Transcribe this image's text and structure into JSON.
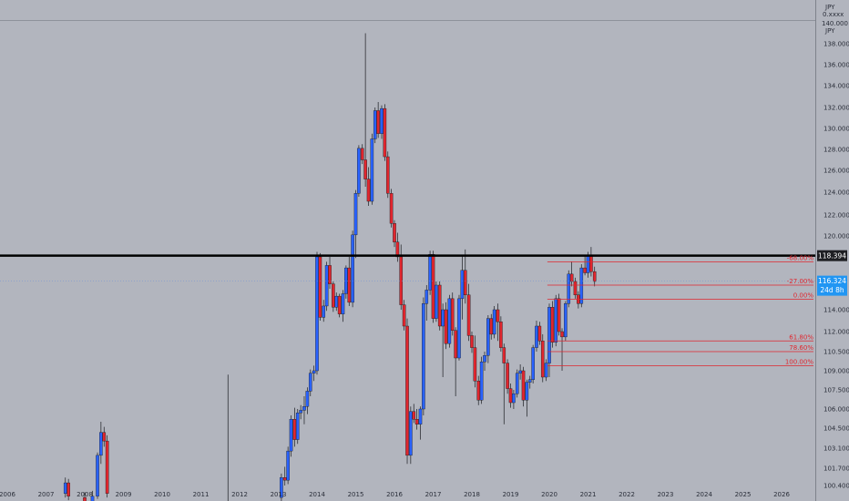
{
  "chart_data": {
    "type": "candlestick",
    "header_labels": [
      "JPY",
      "0.xxxx",
      "140.000",
      "JPY"
    ],
    "y_ticks": [
      "138.000",
      "136.000",
      "134.000",
      "132.000",
      "130.000",
      "128.000",
      "126.000",
      "124.000",
      "122.000",
      "120.000",
      "114.000",
      "112.000",
      "110.500",
      "109.000",
      "107.500",
      "106.000",
      "104.500",
      "103.100",
      "101.700",
      "100.400"
    ],
    "x_ticks": [
      "2006",
      "2007",
      "2008",
      "2009",
      "2010",
      "2011",
      "2012",
      "2013",
      "2014",
      "2015",
      "2016",
      "2017",
      "2018",
      "2019",
      "2020",
      "2021",
      "2022",
      "2023",
      "2024",
      "2025",
      "2026"
    ],
    "horizontal_line": {
      "value": 118.394,
      "label": "118.394"
    },
    "current_price": {
      "value": 116.324,
      "label": "116.324",
      "countdown": "24d 8h"
    },
    "fib_levels": [
      {
        "label": "-68.00%",
        "value": 117.9
      },
      {
        "label": "-27.00%",
        "value": 116.0
      },
      {
        "label": "0.00%",
        "value": 114.85
      },
      {
        "label": "61.80%",
        "value": 111.3
      },
      {
        "label": "78.60%",
        "value": 110.5
      },
      {
        "label": "100.00%",
        "value": 109.4
      }
    ],
    "fib_start_year": 2019.95,
    "colors": {
      "up": "#2962ff",
      "down": "#e0262e",
      "background": "#b2b5be",
      "fib": "#e0262e",
      "hline": "#000000"
    },
    "candles": [
      [
        2007.5,
        99.8,
        101.0,
        99.5,
        100.6
      ],
      [
        2007.58,
        100.6,
        100.9,
        99.3,
        99.6
      ],
      [
        2008.0,
        99.5,
        99.9,
        98.5,
        99.2
      ],
      [
        2008.2,
        99.2,
        100.0,
        99.0,
        99.6
      ],
      [
        2008.33,
        99.6,
        102.8,
        99.4,
        102.6
      ],
      [
        2008.42,
        102.6,
        105.0,
        102.0,
        104.2
      ],
      [
        2008.5,
        104.2,
        104.6,
        103.2,
        103.6
      ],
      [
        2008.58,
        103.6,
        104.0,
        99.5,
        99.8
      ],
      [
        2013.08,
        99.5,
        101.3,
        99.0,
        101.0
      ],
      [
        2013.17,
        101.0,
        101.8,
        100.4,
        100.8
      ],
      [
        2013.25,
        100.8,
        103.2,
        100.5,
        102.9
      ],
      [
        2013.33,
        102.9,
        105.5,
        102.5,
        105.2
      ],
      [
        2013.42,
        105.2,
        106.1,
        103.2,
        103.7
      ],
      [
        2013.5,
        103.7,
        106.0,
        103.4,
        105.7
      ],
      [
        2013.58,
        105.7,
        106.3,
        105.2,
        105.9
      ],
      [
        2013.67,
        105.9,
        107.0,
        104.8,
        106.2
      ],
      [
        2013.75,
        106.2,
        107.7,
        105.6,
        107.4
      ],
      [
        2013.83,
        107.4,
        109.1,
        107.0,
        108.8
      ],
      [
        2013.92,
        108.8,
        109.4,
        108.2,
        109.0
      ],
      [
        2014.0,
        109.0,
        118.7,
        108.7,
        118.3
      ],
      [
        2014.08,
        118.3,
        118.6,
        113.0,
        113.3
      ],
      [
        2014.17,
        113.3,
        114.8,
        112.9,
        114.3
      ],
      [
        2014.25,
        114.3,
        117.9,
        113.9,
        117.6
      ],
      [
        2014.33,
        117.6,
        118.3,
        115.7,
        116.1
      ],
      [
        2014.42,
        116.1,
        116.3,
        113.8,
        114.2
      ],
      [
        2014.5,
        114.2,
        115.4,
        113.9,
        115.1
      ],
      [
        2014.58,
        115.1,
        115.3,
        113.3,
        113.6
      ],
      [
        2014.67,
        113.6,
        115.6,
        112.9,
        115.3
      ],
      [
        2014.75,
        115.3,
        117.6,
        114.9,
        117.4
      ],
      [
        2014.83,
        117.4,
        118.3,
        114.3,
        114.6
      ],
      [
        2014.92,
        114.6,
        120.5,
        114.2,
        120.1
      ],
      [
        2015.0,
        120.1,
        124.2,
        118.2,
        123.9
      ],
      [
        2015.08,
        123.9,
        128.4,
        123.6,
        128.1
      ],
      [
        2015.17,
        128.1,
        128.5,
        126.6,
        127.0
      ],
      [
        2015.25,
        127.0,
        139.0,
        124.5,
        125.2
      ],
      [
        2015.33,
        125.2,
        126.3,
        122.8,
        123.2
      ],
      [
        2015.42,
        123.2,
        129.5,
        122.9,
        129.0
      ],
      [
        2015.5,
        129.0,
        132.0,
        128.6,
        131.7
      ],
      [
        2015.58,
        131.7,
        132.5,
        129.1,
        129.5
      ],
      [
        2015.67,
        129.5,
        132.2,
        129.0,
        131.9
      ],
      [
        2015.75,
        131.9,
        132.3,
        126.9,
        127.3
      ],
      [
        2015.83,
        127.3,
        127.8,
        123.5,
        123.9
      ],
      [
        2015.92,
        123.9,
        124.3,
        120.8,
        121.2
      ],
      [
        2016.0,
        121.2,
        121.5,
        119.1,
        119.5
      ],
      [
        2016.08,
        119.5,
        120.3,
        117.9,
        118.3
      ],
      [
        2016.17,
        118.3,
        119.3,
        114.0,
        114.4
      ],
      [
        2016.25,
        114.4,
        114.8,
        112.1,
        112.5
      ],
      [
        2016.33,
        112.5,
        113.2,
        102.0,
        102.6
      ],
      [
        2016.42,
        102.6,
        106.2,
        102.0,
        105.8
      ],
      [
        2016.5,
        105.8,
        106.4,
        104.9,
        105.2
      ],
      [
        2016.58,
        105.2,
        106.0,
        104.4,
        104.8
      ],
      [
        2016.67,
        104.8,
        106.2,
        103.7,
        106.0
      ],
      [
        2016.75,
        106.0,
        115.0,
        105.5,
        114.5
      ],
      [
        2016.83,
        114.5,
        116.0,
        113.0,
        115.6
      ],
      [
        2016.92,
        115.6,
        118.8,
        115.2,
        118.5
      ],
      [
        2017.0,
        118.5,
        118.8,
        112.8,
        113.2
      ],
      [
        2017.08,
        113.2,
        116.3,
        112.9,
        116.0
      ],
      [
        2017.17,
        116.0,
        116.3,
        112.1,
        112.5
      ],
      [
        2017.25,
        112.5,
        114.5,
        108.5,
        114.0
      ],
      [
        2017.33,
        114.0,
        114.6,
        110.7,
        111.1
      ],
      [
        2017.42,
        111.1,
        115.2,
        110.8,
        114.9
      ],
      [
        2017.5,
        114.9,
        115.4,
        111.7,
        112.1
      ],
      [
        2017.58,
        112.1,
        112.4,
        107.0,
        110.0
      ],
      [
        2017.67,
        110.0,
        115.2,
        109.8,
        114.9
      ],
      [
        2017.75,
        114.9,
        118.4,
        113.1,
        117.2
      ],
      [
        2017.83,
        117.2,
        118.9,
        114.5,
        115.2
      ],
      [
        2017.92,
        115.2,
        116.1,
        111.3,
        111.7
      ],
      [
        2018.0,
        111.7,
        112.0,
        110.4,
        110.8
      ],
      [
        2018.08,
        110.8,
        111.7,
        107.7,
        108.2
      ],
      [
        2018.17,
        108.2,
        108.6,
        106.3,
        106.7
      ],
      [
        2018.25,
        106.7,
        110.1,
        106.4,
        109.7
      ],
      [
        2018.33,
        109.7,
        110.5,
        109.0,
        110.2
      ],
      [
        2018.42,
        110.2,
        113.5,
        109.6,
        113.2
      ],
      [
        2018.5,
        113.2,
        113.6,
        111.4,
        111.8
      ],
      [
        2018.58,
        111.8,
        114.3,
        111.5,
        114.0
      ],
      [
        2018.67,
        114.0,
        114.5,
        111.3,
        112.9
      ],
      [
        2018.75,
        112.9,
        113.4,
        110.5,
        110.8
      ],
      [
        2018.83,
        110.8,
        111.1,
        104.8,
        109.6
      ],
      [
        2018.92,
        109.6,
        109.9,
        107.2,
        107.6
      ],
      [
        2019.0,
        107.6,
        108.0,
        106.1,
        106.5
      ],
      [
        2019.08,
        106.5,
        107.5,
        106.0,
        107.2
      ],
      [
        2019.17,
        107.2,
        109.1,
        106.9,
        108.8
      ],
      [
        2019.25,
        108.8,
        109.5,
        108.3,
        109.0
      ],
      [
        2019.33,
        109.0,
        109.3,
        106.2,
        106.7
      ],
      [
        2019.42,
        106.7,
        108.3,
        105.4,
        108.1
      ],
      [
        2019.5,
        108.1,
        108.6,
        107.6,
        108.3
      ],
      [
        2019.58,
        108.3,
        111.0,
        108.0,
        110.8
      ],
      [
        2019.67,
        110.8,
        113.0,
        110.5,
        112.5
      ],
      [
        2019.75,
        112.5,
        112.9,
        111.0,
        111.3
      ],
      [
        2019.83,
        111.3,
        111.8,
        108.1,
        108.5
      ],
      [
        2019.92,
        108.5,
        109.9,
        108.2,
        109.6
      ],
      [
        2020.0,
        109.6,
        114.5,
        108.5,
        114.2
      ],
      [
        2020.08,
        114.2,
        114.7,
        110.8,
        111.2
      ],
      [
        2020.17,
        111.2,
        115.2,
        110.9,
        114.9
      ],
      [
        2020.25,
        114.9,
        115.3,
        111.7,
        112.0
      ],
      [
        2020.33,
        112.0,
        112.3,
        109.0,
        111.6
      ],
      [
        2020.42,
        111.6,
        114.7,
        111.3,
        114.5
      ],
      [
        2020.5,
        114.5,
        117.2,
        114.2,
        116.9
      ],
      [
        2020.58,
        116.9,
        117.9,
        115.9,
        116.3
      ],
      [
        2020.67,
        116.3,
        116.6,
        114.9,
        115.2
      ],
      [
        2020.75,
        115.2,
        115.5,
        114.1,
        114.5
      ],
      [
        2020.83,
        114.5,
        117.7,
        114.2,
        117.4
      ],
      [
        2020.92,
        117.4,
        118.4,
        116.8,
        117.0
      ],
      [
        2021.0,
        117.0,
        118.7,
        116.6,
        118.4
      ],
      [
        2021.08,
        118.4,
        119.1,
        116.7,
        117.1
      ],
      [
        2021.17,
        117.1,
        117.5,
        115.9,
        116.3
      ]
    ]
  }
}
